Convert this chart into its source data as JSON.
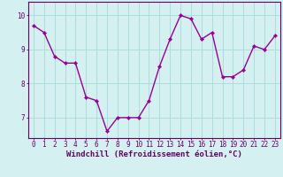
{
  "x": [
    0,
    1,
    2,
    3,
    4,
    5,
    6,
    7,
    8,
    9,
    10,
    11,
    12,
    13,
    14,
    15,
    16,
    17,
    18,
    19,
    20,
    21,
    22,
    23
  ],
  "y": [
    9.7,
    9.5,
    8.8,
    8.6,
    8.6,
    7.6,
    7.5,
    6.6,
    7.0,
    7.0,
    7.0,
    7.5,
    8.5,
    9.3,
    10.0,
    9.9,
    9.3,
    9.5,
    8.2,
    8.2,
    8.4,
    9.1,
    9.0,
    9.4
  ],
  "line_color": "#990099",
  "marker_color": "#990099",
  "bg_color": "#d4f0f0",
  "grid_color": "#aadddd",
  "xlabel": "Windchill (Refroidissement éolien,°C)",
  "xlabel_color": "#660066",
  "yticks": [
    7,
    8,
    9,
    10
  ],
  "xticks": [
    0,
    1,
    2,
    3,
    4,
    5,
    6,
    7,
    8,
    9,
    10,
    11,
    12,
    13,
    14,
    15,
    16,
    17,
    18,
    19,
    20,
    21,
    22,
    23
  ],
  "ylim": [
    6.4,
    10.4
  ],
  "xlim": [
    -0.5,
    23.5
  ],
  "tick_color": "#660066",
  "spine_color": "#660066"
}
